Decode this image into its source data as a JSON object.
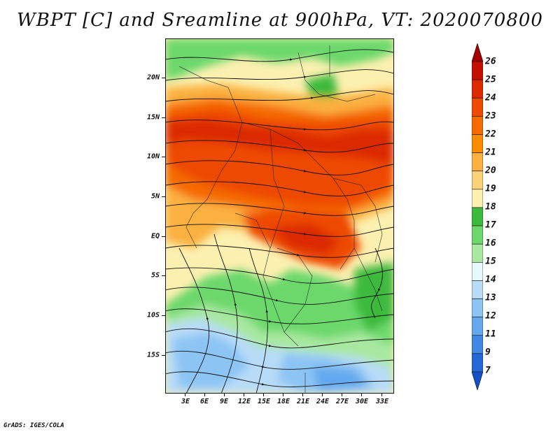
{
  "title": "WBPT [C] and Sreamline at 900hPa, VT: 2020070800",
  "footer": "GrADS: IGES/COLA",
  "map": {
    "latitude_labels": [
      "20N",
      "15N",
      "10N",
      "5N",
      "EQ",
      "5S",
      "10S",
      "15S"
    ],
    "longitude_labels": [
      "3E",
      "6E",
      "9E",
      "12E",
      "15E",
      "18E",
      "21E",
      "24E",
      "27E",
      "30E",
      "33E"
    ]
  },
  "colorbar": {
    "labels": [
      "26",
      "25",
      "24",
      "23",
      "22",
      "21",
      "20",
      "19",
      "18",
      "17",
      "16",
      "15",
      "14",
      "13",
      "12",
      "11",
      "9",
      "7"
    ],
    "colors": [
      "#a50000",
      "#c40f00",
      "#dc2a00",
      "#ee4a00",
      "#f56b00",
      "#fb8c00",
      "#fbb040",
      "#fbd27a",
      "#fcf0b0",
      "#3cba3c",
      "#6cd86c",
      "#a8e8a0",
      "#e8f8ff",
      "#b8dcf8",
      "#8cc4f4",
      "#64a8ee",
      "#4088e4",
      "#2468d8",
      "#1450c8"
    ]
  }
}
